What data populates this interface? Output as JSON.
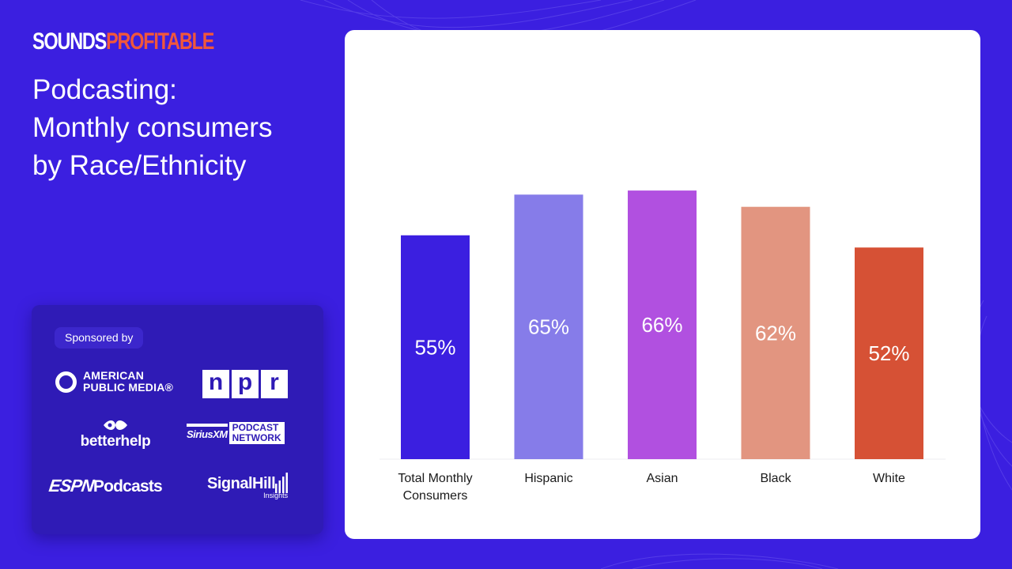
{
  "brand": {
    "part1": "SOUNDS",
    "part2": "PROFITABLE"
  },
  "title_lines": [
    "Podcasting:",
    "Monthly consumers",
    "by Race/Ethnicity"
  ],
  "sponsor": {
    "label": "Sponsored by",
    "apm": [
      "AMERICAN",
      "PUBLIC MEDIA®"
    ],
    "npr": [
      "n",
      "p",
      "r"
    ],
    "betterhelp": "betterhelp",
    "siriusxm": {
      "name": "SiriusXM",
      "tag": [
        "PODCAST",
        "NETWORK"
      ]
    },
    "espn": {
      "mark": "ESPN",
      "word": "Podcasts"
    },
    "signalhill": {
      "name": "SignalHill",
      "sub": "Insights"
    }
  },
  "colors": {
    "background": "#3b1fe0",
    "accent": "#f0573c"
  },
  "chart_data": {
    "type": "bar",
    "categories": [
      "Total Monthly Consumers",
      "Hispanic",
      "Asian",
      "Black",
      "White"
    ],
    "category_lines": [
      [
        "Total Monthly",
        "Consumers"
      ],
      [
        "Hispanic"
      ],
      [
        "Asian"
      ],
      [
        "Black"
      ],
      [
        "White"
      ]
    ],
    "values": [
      55,
      65,
      66,
      62,
      52
    ],
    "value_labels": [
      "55%",
      "65%",
      "66%",
      "62%",
      "52%"
    ],
    "bar_colors": [
      "#3b1fe0",
      "#867ce9",
      "#b150e0",
      "#e29580",
      "#d65135"
    ],
    "ylim": [
      0,
      100
    ],
    "title": "",
    "xlabel": "",
    "ylabel": "",
    "grid": false,
    "legend": "none"
  }
}
